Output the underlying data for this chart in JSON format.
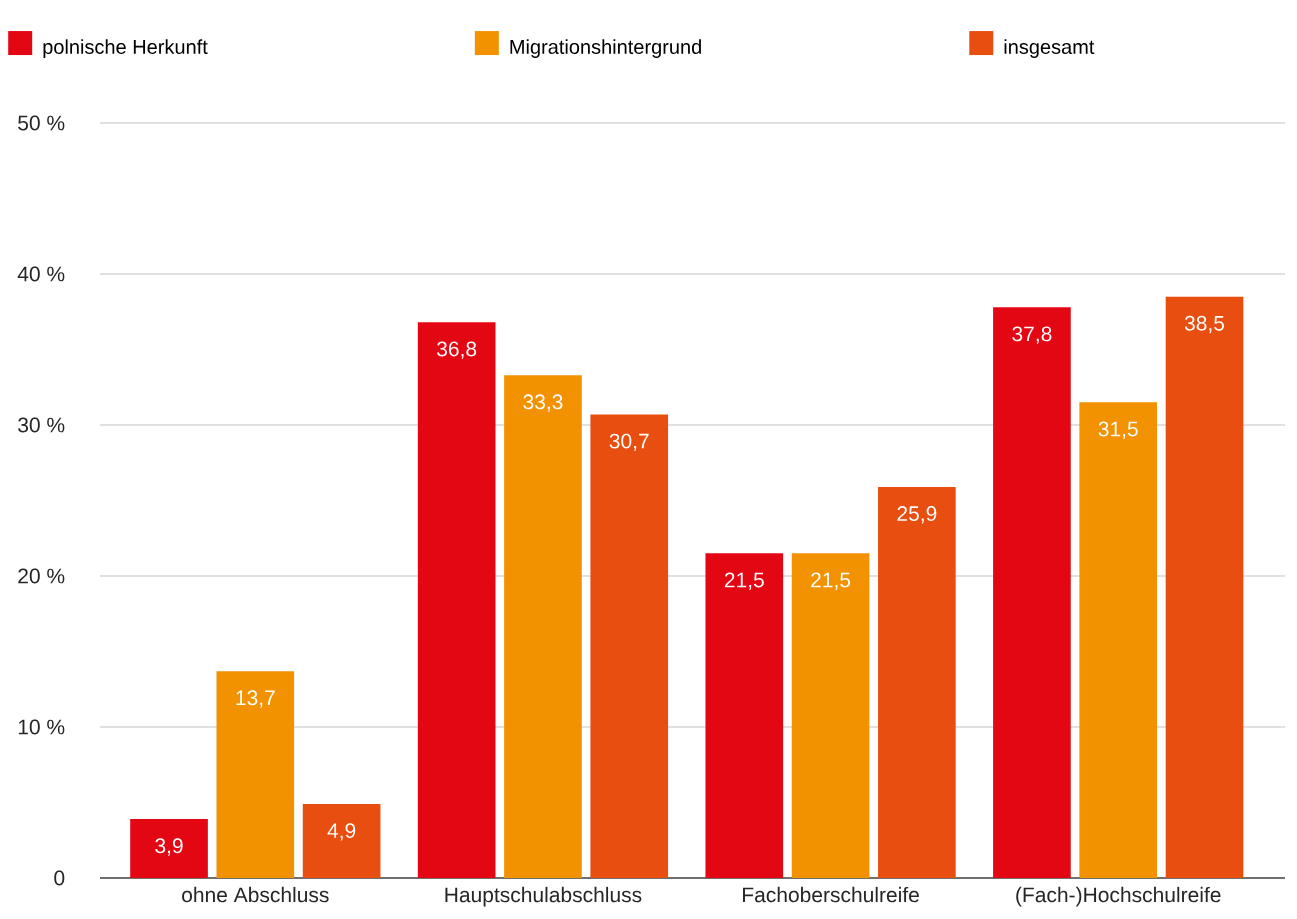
{
  "chart_data": {
    "type": "bar",
    "categories": [
      "ohne Abschluss",
      "Hauptschulabschluss",
      "Fachoberschulreife",
      "(Fach-)Hochschulreife"
    ],
    "series": [
      {
        "name": "polnische Herkunft",
        "color": "#e30613",
        "values": [
          3.9,
          36.8,
          21.5,
          37.8
        ],
        "value_labels": [
          "3,9",
          "36,8",
          "21,5",
          "37,8"
        ]
      },
      {
        "name": "Migrationshintergrund",
        "color": "#f39200",
        "values": [
          13.7,
          33.3,
          21.5,
          31.5
        ],
        "value_labels": [
          "13,7",
          "33,3",
          "21,5",
          "31,5"
        ]
      },
      {
        "name": "insgesamt",
        "color": "#e84e0f",
        "values": [
          4.9,
          30.7,
          25.9,
          38.5
        ],
        "value_labels": [
          "4,9",
          "30,7",
          "25,9",
          "38,5"
        ]
      }
    ],
    "ylim": [
      0,
      50
    ],
    "yticks": [
      0,
      {
        "value": 10,
        "label": "10 %"
      },
      {
        "value": 20,
        "label": "20 %"
      },
      {
        "value": 30,
        "label": "30 %"
      },
      {
        "value": 40,
        "label": "40 %"
      },
      {
        "value": 50,
        "label": "50 %"
      }
    ],
    "grid": "y",
    "legend": "top"
  }
}
